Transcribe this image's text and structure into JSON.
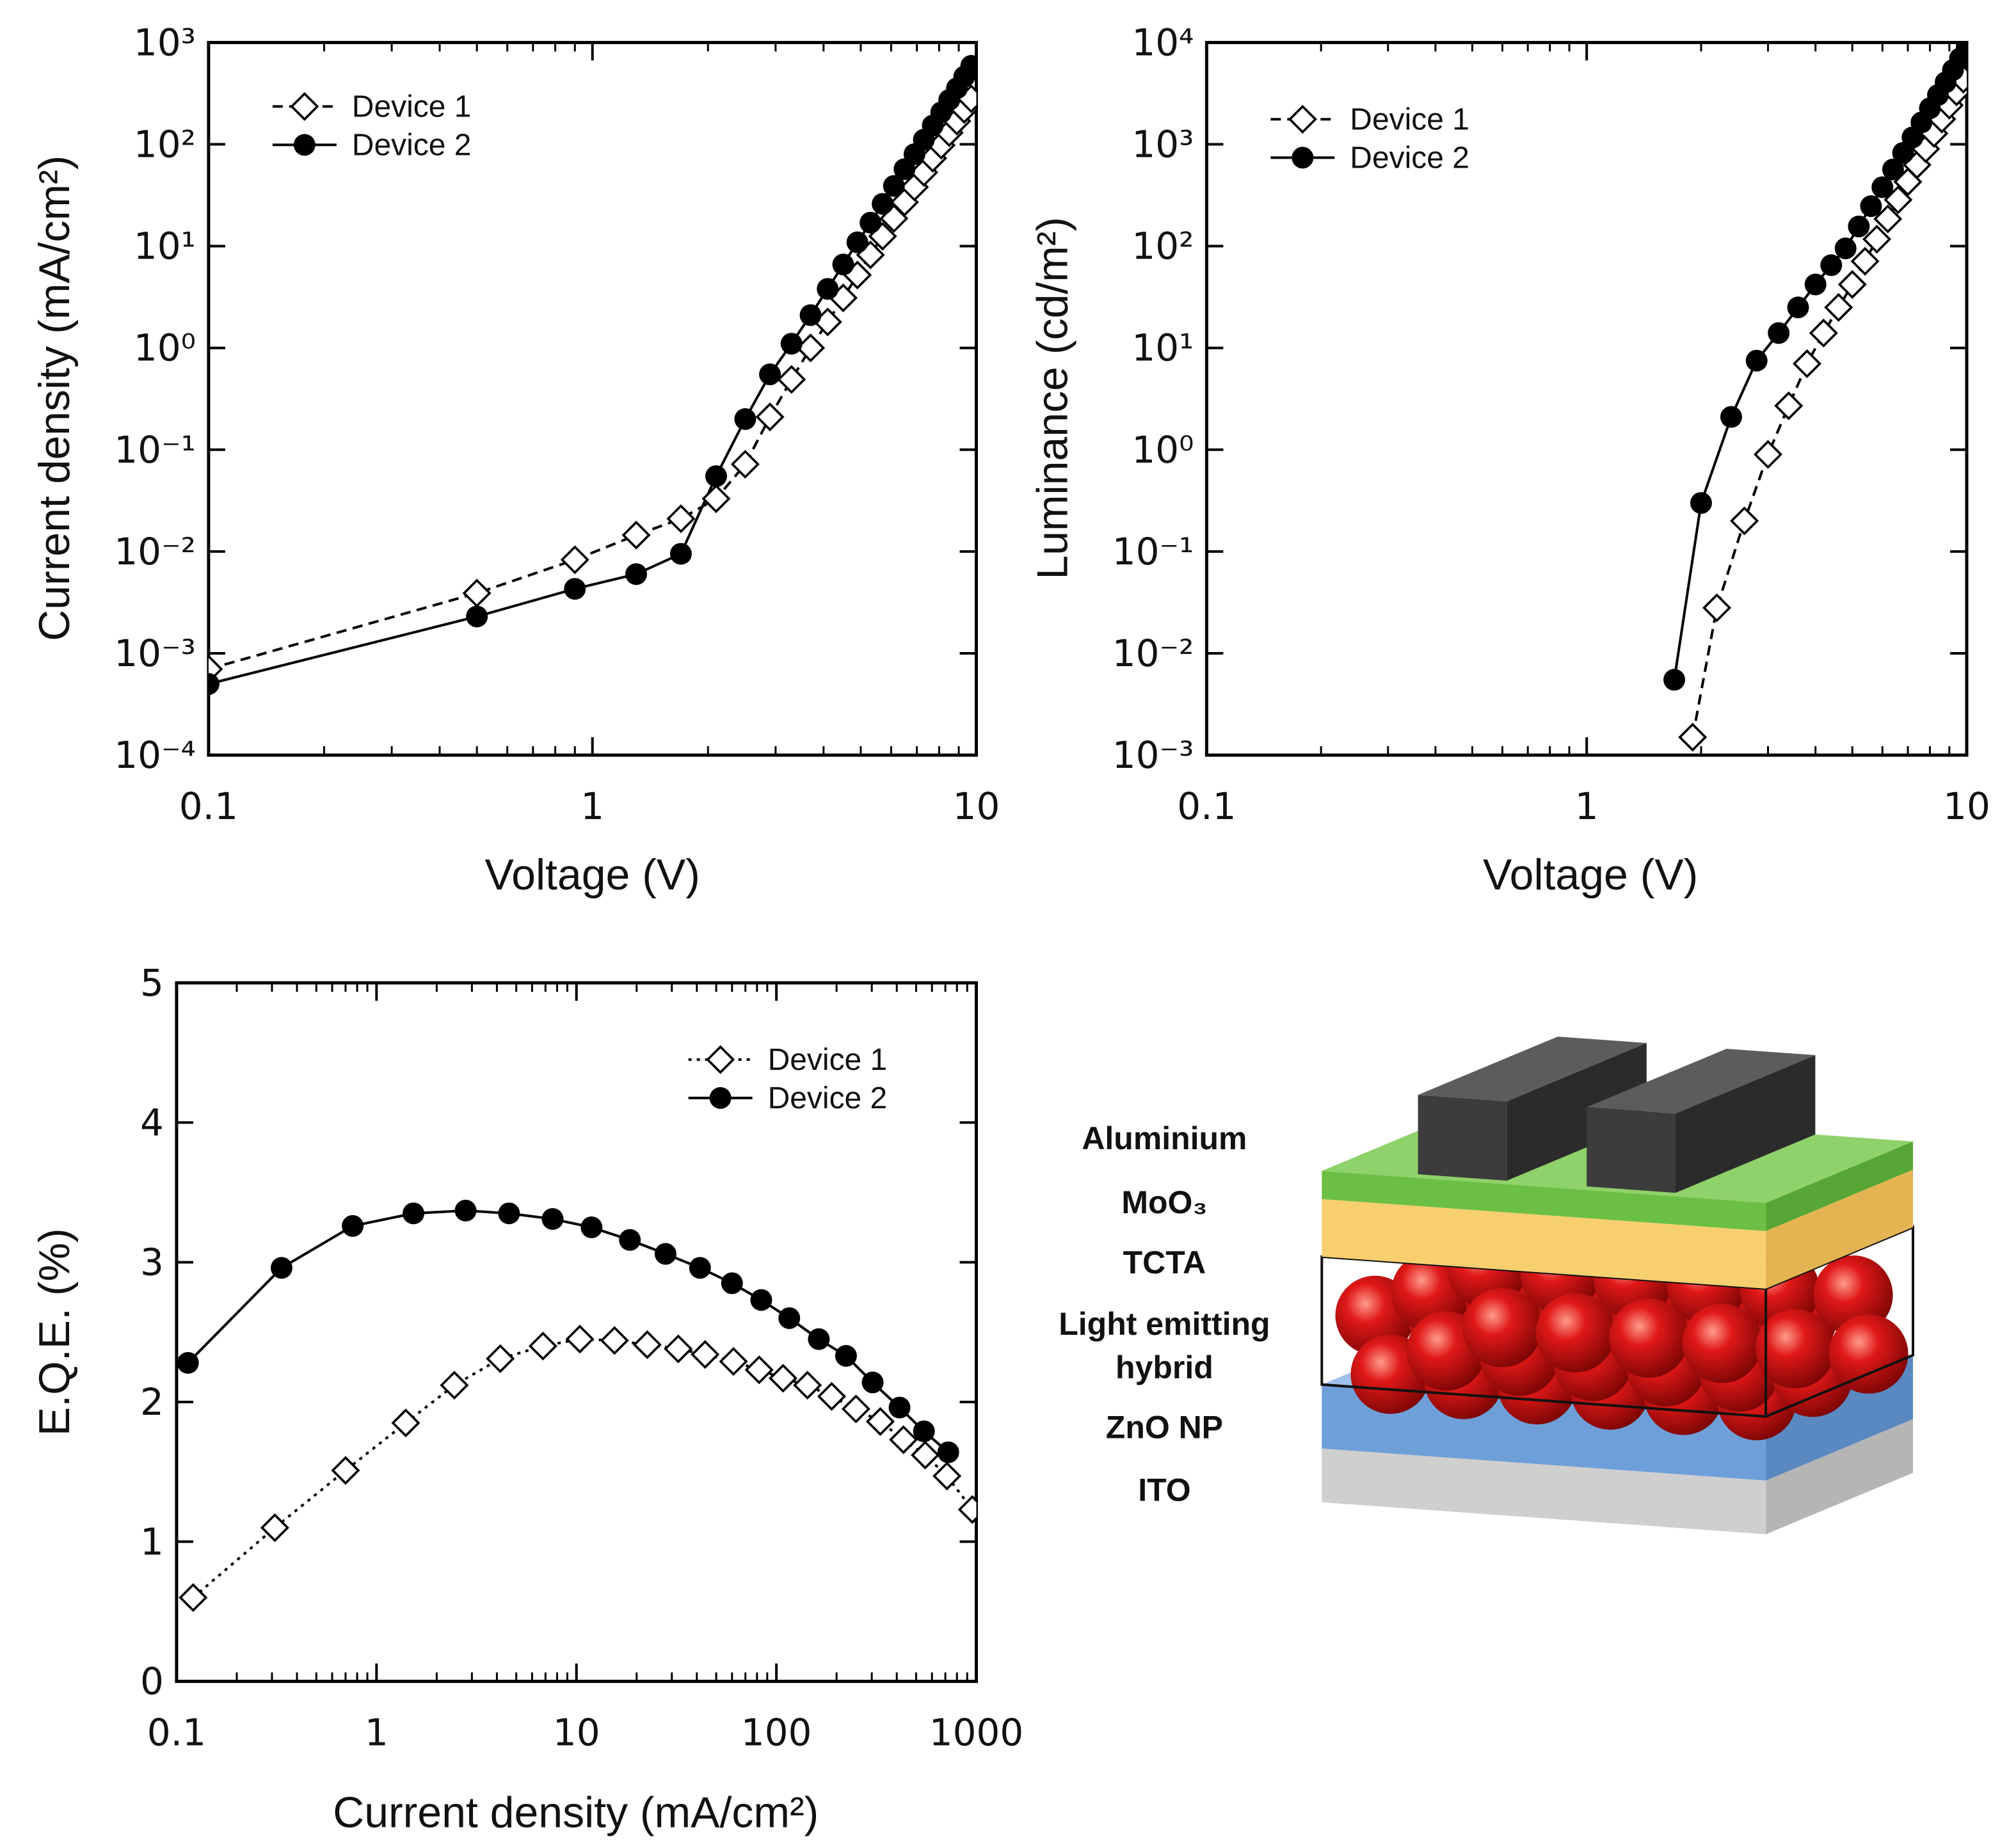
{
  "chart_data": [
    {
      "type": "line",
      "xlabel": "Voltage (V)",
      "ylabel": "Current density (mA/cm²)",
      "xlog": true,
      "ylog": true,
      "x_minor_ticks": true,
      "legend": "upper left",
      "xlim": [
        0.1,
        10
      ],
      "xticks": [
        0.1,
        1,
        10
      ],
      "ylim": [
        0.0001,
        1000
      ],
      "yticks": [
        {
          "value": 0.0001,
          "label": "10⁻⁴"
        },
        {
          "value": 0.001,
          "label": "10⁻³"
        },
        {
          "value": 0.01,
          "label": "10⁻²"
        },
        {
          "value": 0.1,
          "label": "10⁻¹"
        },
        {
          "value": 1,
          "label": "10⁰"
        },
        {
          "value": 10,
          "label": "10¹"
        },
        {
          "value": 100,
          "label": "10²"
        },
        {
          "value": 1000,
          "label": "10³"
        }
      ],
      "series": [
        {
          "name": "Device 1",
          "color": "#000000",
          "marker": "diamond",
          "line_style": "dashed",
          "x": [
            0.1,
            0.5,
            0.9,
            1.3,
            1.7,
            2.1,
            2.5,
            2.9,
            3.3,
            3.7,
            4.1,
            4.5,
            4.9,
            5.3,
            5.7,
            6.1,
            6.5,
            6.9,
            7.3,
            7.7,
            8.1,
            8.5,
            8.9,
            9.3,
            9.7
          ],
          "values": [
            0.0007,
            0.0039,
            0.0083,
            0.0145,
            0.021,
            0.033,
            0.072,
            0.21,
            0.49,
            1.0,
            1.8,
            3.1,
            5.2,
            8.2,
            12.5,
            18.7,
            27,
            38,
            53,
            73,
            98,
            130,
            169,
            220,
            280
          ]
        },
        {
          "name": "Device 2",
          "color": "#000000",
          "marker": "circle",
          "line_style": "solid",
          "x": [
            0.1,
            0.5,
            0.9,
            1.3,
            1.7,
            2.1,
            2.5,
            2.9,
            3.3,
            3.7,
            4.1,
            4.5,
            4.9,
            5.3,
            5.7,
            6.1,
            6.5,
            6.9,
            7.3,
            7.7,
            8.1,
            8.5,
            8.9,
            9.3,
            9.7
          ],
          "values": [
            0.0005,
            0.0023,
            0.0043,
            0.006,
            0.0095,
            0.055,
            0.2,
            0.55,
            1.1,
            2.1,
            3.8,
            6.6,
            10.9,
            17,
            26,
            39,
            57,
            80,
            111,
            153,
            206,
            273,
            355,
            462,
            590
          ]
        }
      ]
    },
    {
      "type": "line",
      "xlabel": "Voltage (V)",
      "ylabel": "Luminance (cd/m²)",
      "xlog": true,
      "ylog": true,
      "x_minor_ticks": true,
      "legend": "upper left",
      "xlim": [
        0.1,
        10
      ],
      "xticks": [
        0.1,
        1,
        10
      ],
      "ylim": [
        0.001,
        10000
      ],
      "yticks": [
        {
          "value": 0.001,
          "label": "10⁻³"
        },
        {
          "value": 0.01,
          "label": "10⁻²"
        },
        {
          "value": 0.1,
          "label": "10⁻¹"
        },
        {
          "value": 1,
          "label": "10⁰"
        },
        {
          "value": 10,
          "label": "10¹"
        },
        {
          "value": 100,
          "label": "10²"
        },
        {
          "value": 1000,
          "label": "10³"
        },
        {
          "value": 10000,
          "label": "10⁴"
        }
      ],
      "series": [
        {
          "name": "Device 1",
          "color": "#000000",
          "marker": "diamond",
          "line_style": "dashed",
          "x": [
            1.9,
            2.2,
            2.6,
            3.0,
            3.4,
            3.8,
            4.2,
            4.6,
            5.0,
            5.4,
            5.8,
            6.2,
            6.6,
            7.0,
            7.4,
            7.8,
            8.2,
            8.6,
            9.0,
            9.4,
            9.8
          ],
          "values": [
            0.0015,
            0.028,
            0.2,
            0.9,
            2.7,
            7,
            14,
            25,
            42,
            71,
            117,
            185,
            285,
            428,
            628,
            903,
            1280,
            1770,
            2420,
            3270,
            4360
          ]
        },
        {
          "name": "Device 2",
          "color": "#000000",
          "marker": "circle",
          "line_style": "solid",
          "x": [
            1.7,
            2.0,
            2.4,
            2.8,
            3.2,
            3.6,
            4.0,
            4.4,
            4.8,
            5.2,
            5.6,
            6.0,
            6.4,
            6.8,
            7.2,
            7.6,
            8.0,
            8.4,
            8.8,
            9.2,
            9.6,
            10.0
          ],
          "values": [
            0.0055,
            0.3,
            2.1,
            7.5,
            14,
            25,
            42,
            65,
            95,
            156,
            247,
            379,
            566,
            823,
            1170,
            1640,
            2260,
            3050,
            4070,
            5370,
            6980,
            9000
          ]
        }
      ]
    },
    {
      "type": "line",
      "xlabel": "Current density (mA/cm²)",
      "ylabel": "E.Q.E.  (%)",
      "xlog": true,
      "ylog": false,
      "x_minor_ticks": true,
      "legend": "upper right",
      "xlim": [
        0.1,
        1000
      ],
      "xticks": [
        0.1,
        1,
        10,
        100,
        1000
      ],
      "ylim": [
        0,
        5
      ],
      "yticks": [
        0,
        1,
        2,
        3,
        4,
        5
      ],
      "series": [
        {
          "name": "Device 1",
          "color": "#000000",
          "marker": "diamond",
          "line_style": "dotted",
          "x": [
            0.121,
            0.31,
            0.7,
            1.4,
            2.45,
            4.16,
            6.8,
            10.4,
            15.5,
            22.6,
            32.3,
            44,
            61,
            82,
            108,
            143,
            189,
            250,
            331,
            432,
            555,
            713,
            955
          ],
          "values": [
            0.6,
            1.1,
            1.51,
            1.85,
            2.12,
            2.31,
            2.4,
            2.45,
            2.44,
            2.41,
            2.38,
            2.34,
            2.29,
            2.23,
            2.17,
            2.12,
            2.04,
            1.95,
            1.86,
            1.73,
            1.62,
            1.47,
            1.23
          ]
        },
        {
          "name": "Device 2",
          "color": "#000000",
          "marker": "circle",
          "line_style": "solid",
          "x": [
            0.114,
            0.335,
            0.76,
            1.53,
            2.79,
            4.6,
            7.6,
            11.9,
            18.5,
            27.9,
            41.5,
            60,
            84,
            116,
            163,
            223,
            303,
            413,
            547,
            724
          ],
          "values": [
            2.28,
            2.96,
            3.26,
            3.35,
            3.37,
            3.35,
            3.31,
            3.25,
            3.16,
            3.06,
            2.96,
            2.85,
            2.73,
            2.6,
            2.45,
            2.33,
            2.14,
            1.96,
            1.79,
            1.64
          ]
        }
      ]
    }
  ],
  "diagram": {
    "labels": [
      [
        "Aluminium"
      ],
      [
        "MoO₃"
      ],
      [
        "TCTA"
      ],
      [
        "Light emitting",
        "hybrid"
      ],
      [
        "ZnO NP"
      ],
      [
        "ITO"
      ]
    ]
  }
}
